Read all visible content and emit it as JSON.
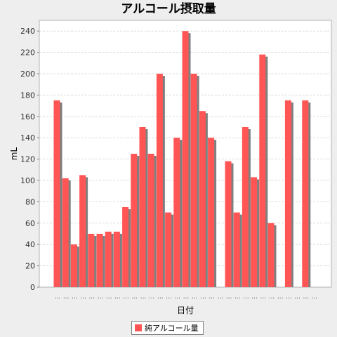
{
  "chart_data": {
    "type": "bar",
    "title": "アルコール摂取量",
    "xlabel": "日付",
    "ylabel": "mL",
    "ylim": [
      0,
      250
    ],
    "yticks": [
      0,
      20,
      40,
      60,
      80,
      100,
      120,
      140,
      160,
      180,
      200,
      220,
      240
    ],
    "grid": true,
    "legend_position": "bottom",
    "categories": [
      "...",
      "...",
      "...",
      "...",
      "...",
      "...",
      "...",
      "...",
      "...",
      "...",
      "...",
      "...",
      "...",
      "...",
      "...",
      "...",
      "...",
      "...",
      "...",
      "...",
      "...",
      "...",
      "...",
      "...",
      "...",
      "...",
      "...",
      "...",
      "...",
      "...",
      "..."
    ],
    "series": [
      {
        "name": "純アルコール量",
        "color": "#ff5555",
        "values": [
          175,
          102,
          40,
          105,
          50,
          50,
          52,
          52,
          75,
          125,
          150,
          125,
          200,
          70,
          140,
          240,
          200,
          165,
          140,
          0,
          118,
          70,
          150,
          103,
          218,
          60,
          0,
          175,
          0,
          175,
          0
        ]
      }
    ]
  }
}
